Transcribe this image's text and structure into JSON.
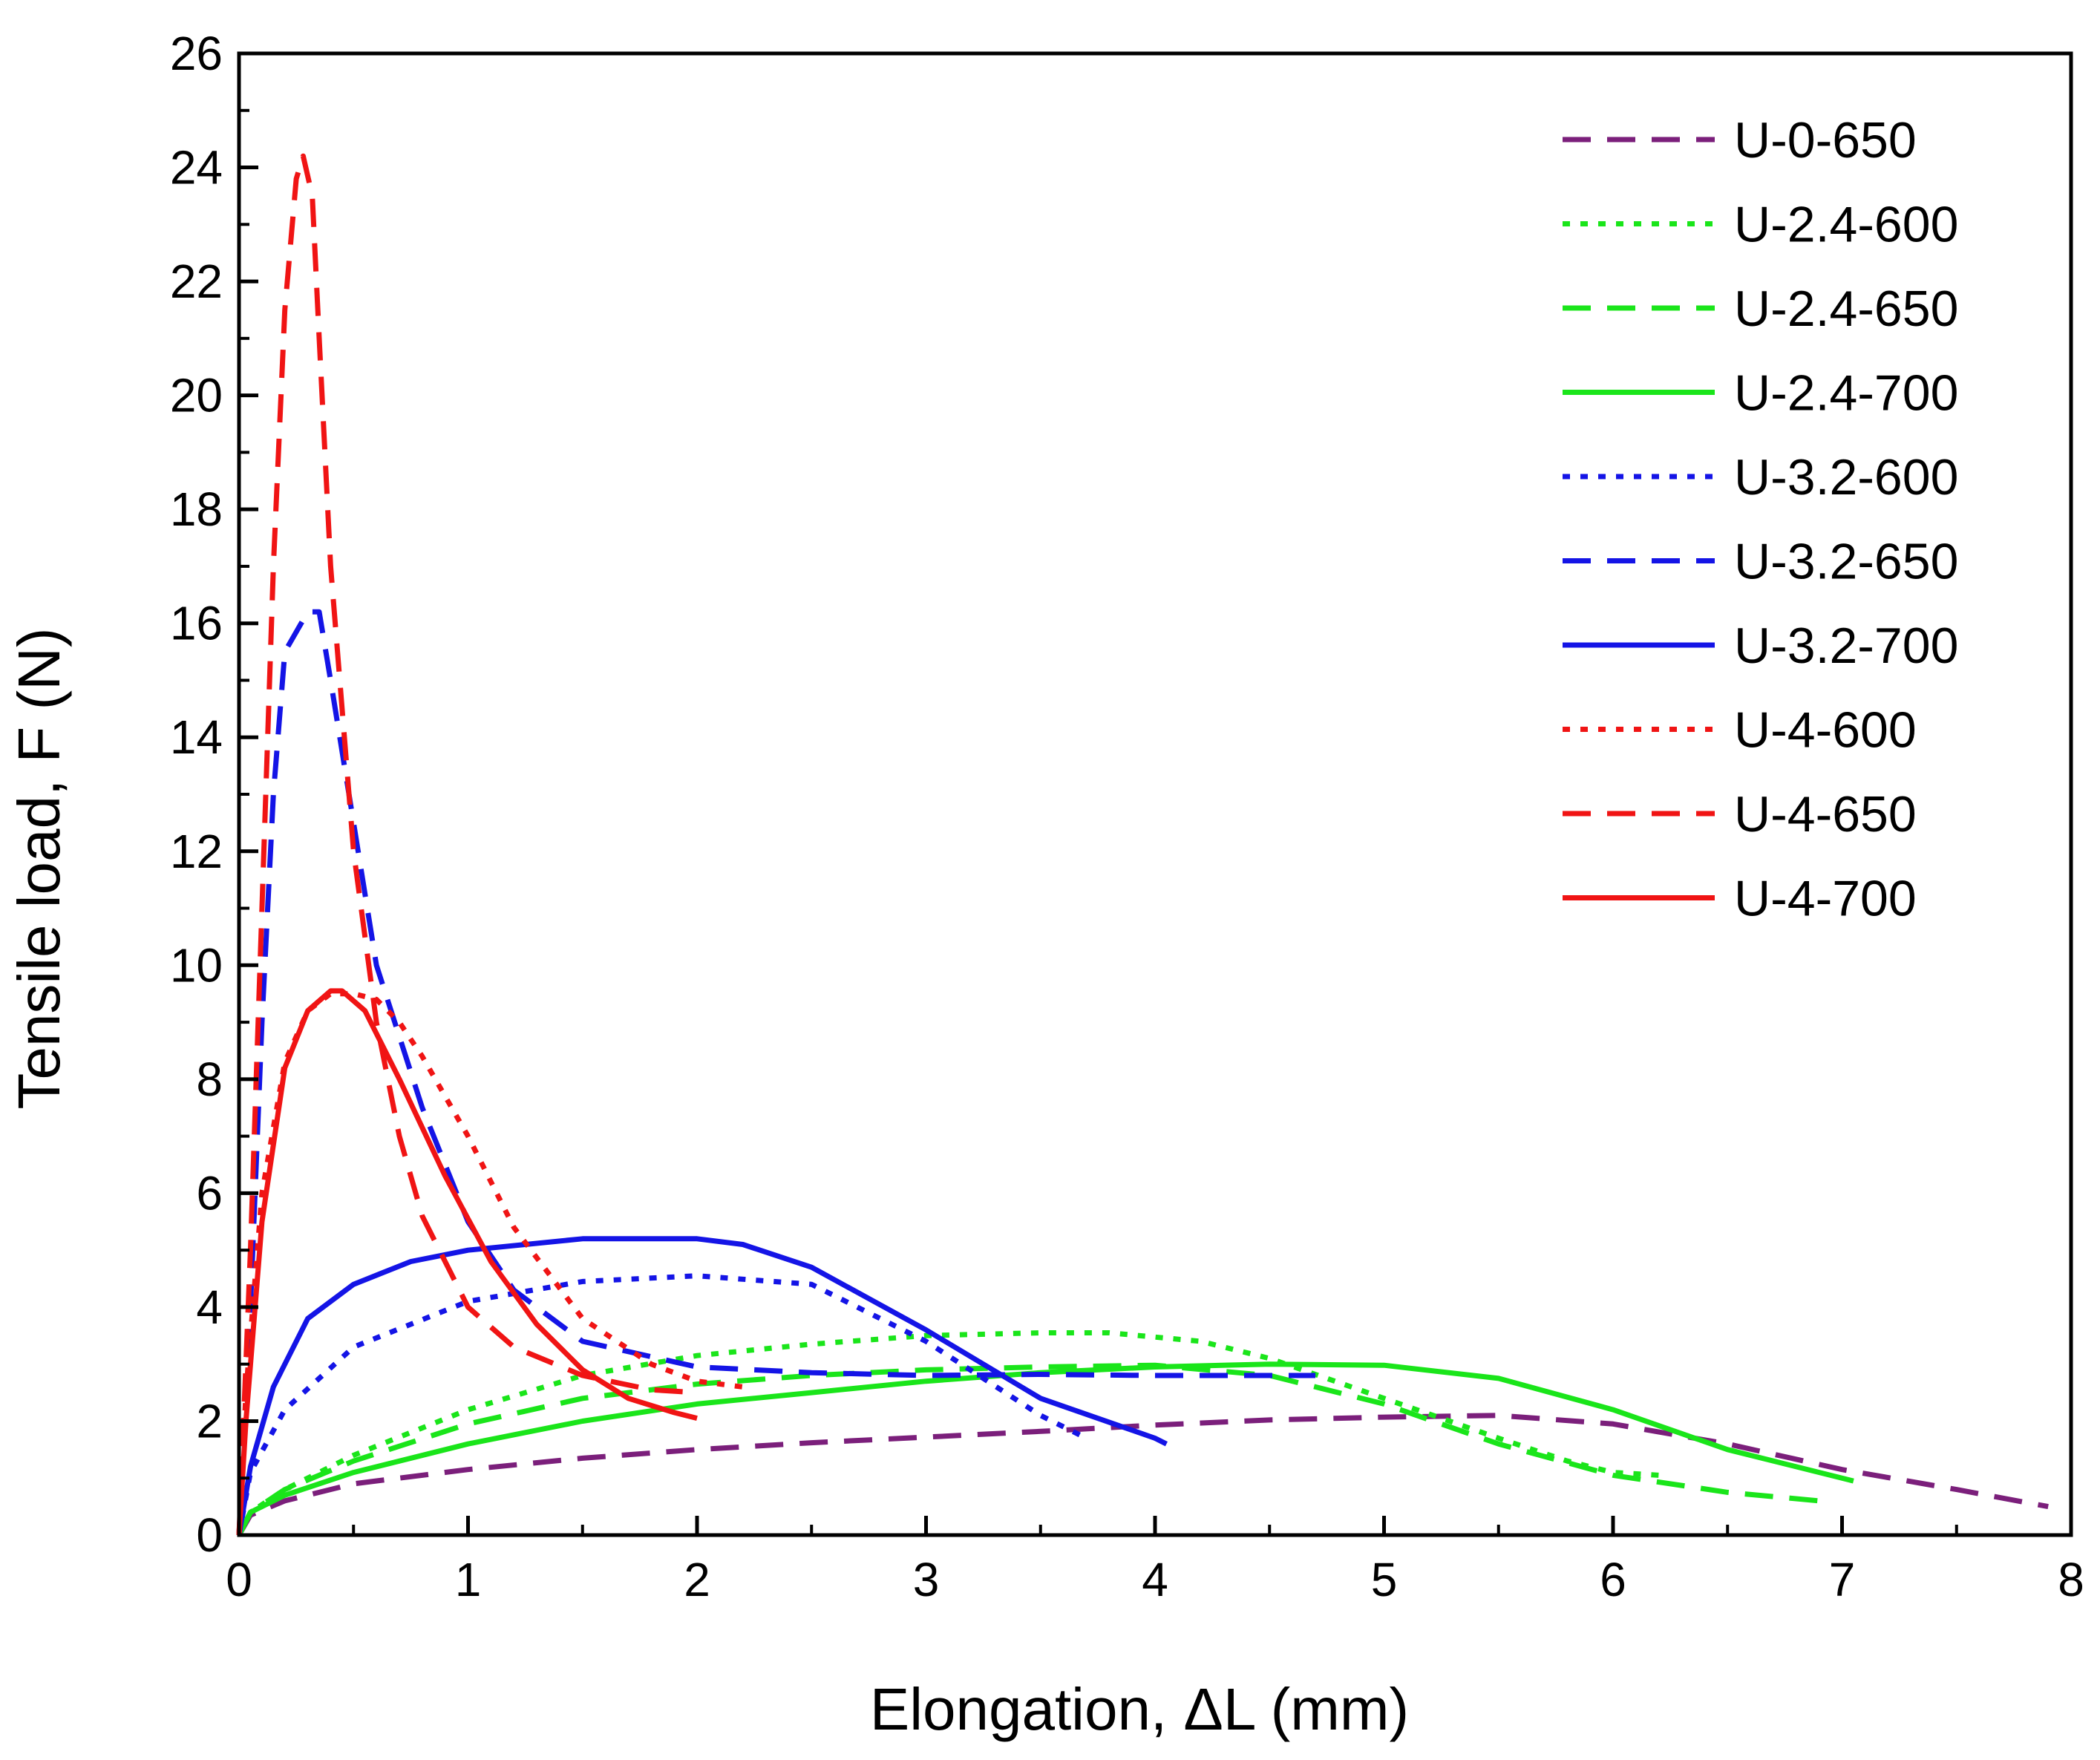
{
  "chart_data": {
    "type": "line",
    "title": "",
    "xlabel": "Elongation, ΔL (mm)",
    "ylabel": "Tensile load, F (N)",
    "xlim": [
      0,
      8
    ],
    "ylim": [
      0,
      26
    ],
    "xticks": [
      "0",
      "1",
      "2",
      "3",
      "4",
      "5",
      "6",
      "7",
      "8"
    ],
    "yticks": [
      "0",
      "2",
      "4",
      "6",
      "8",
      "10",
      "12",
      "14",
      "16",
      "18",
      "20",
      "22",
      "24",
      "26"
    ],
    "legend_position": "top-right",
    "grid": false,
    "series": [
      {
        "name": "U-0-650",
        "color": "#7B1F7B",
        "style": "dashed",
        "x": [
          0,
          0.05,
          0.2,
          0.5,
          1.0,
          1.5,
          2.0,
          2.5,
          3.0,
          3.5,
          4.0,
          4.5,
          5.0,
          5.5,
          6.0,
          6.5,
          7.0,
          7.5,
          7.9
        ],
        "y": [
          0,
          0.35,
          0.6,
          0.9,
          1.15,
          1.35,
          1.5,
          1.62,
          1.72,
          1.82,
          1.93,
          2.02,
          2.07,
          2.1,
          1.95,
          1.6,
          1.15,
          0.8,
          0.5
        ]
      },
      {
        "name": "U-2.4-600",
        "color": "#1AE51A",
        "style": "dotted",
        "x": [
          0,
          0.05,
          0.2,
          0.5,
          1.0,
          1.5,
          2.0,
          2.5,
          3.0,
          3.5,
          3.8,
          4.2,
          4.5,
          5.0,
          5.5,
          5.8,
          6.0,
          6.2
        ],
        "y": [
          0,
          0.4,
          0.8,
          1.4,
          2.2,
          2.8,
          3.15,
          3.35,
          3.5,
          3.55,
          3.55,
          3.4,
          3.1,
          2.4,
          1.7,
          1.3,
          1.1,
          1.05
        ]
      },
      {
        "name": "U-2.4-650",
        "color": "#1AE51A",
        "style": "dashed",
        "x": [
          0,
          0.05,
          0.2,
          0.5,
          1.0,
          1.5,
          2.0,
          2.5,
          3.0,
          3.5,
          4.0,
          4.5,
          5.0,
          5.5,
          6.0,
          6.5,
          6.9
        ],
        "y": [
          0,
          0.4,
          0.8,
          1.3,
          1.95,
          2.4,
          2.65,
          2.8,
          2.9,
          2.95,
          2.98,
          2.8,
          2.3,
          1.6,
          1.05,
          0.75,
          0.6
        ]
      },
      {
        "name": "U-2.4-700",
        "color": "#1AE51A",
        "style": "solid",
        "x": [
          0,
          0.05,
          0.2,
          0.5,
          1.0,
          1.5,
          2.0,
          2.5,
          3.0,
          3.5,
          4.0,
          4.5,
          5.0,
          5.5,
          6.0,
          6.5,
          7.05
        ],
        "y": [
          0,
          0.4,
          0.7,
          1.1,
          1.6,
          2.0,
          2.3,
          2.5,
          2.7,
          2.85,
          2.95,
          3.0,
          2.98,
          2.75,
          2.2,
          1.5,
          0.95
        ]
      },
      {
        "name": "U-3.2-600",
        "color": "#1414E6",
        "style": "dotted",
        "x": [
          0,
          0.05,
          0.2,
          0.5,
          1.0,
          1.5,
          2.0,
          2.5,
          3.0,
          3.5,
          3.7
        ],
        "y": [
          0,
          1.1,
          2.2,
          3.3,
          4.1,
          4.45,
          4.55,
          4.4,
          3.4,
          2.1,
          1.7
        ]
      },
      {
        "name": "U-3.2-650",
        "color": "#1414E6",
        "style": "dashed",
        "x": [
          0,
          0.05,
          0.1,
          0.15,
          0.2,
          0.3,
          0.35,
          0.4,
          0.5,
          0.6,
          0.8,
          1.0,
          1.2,
          1.5,
          2.0,
          2.5,
          3.0,
          3.5,
          4.0,
          4.5,
          4.7
        ],
        "y": [
          0,
          4.0,
          9.0,
          13.0,
          15.5,
          16.2,
          16.2,
          15.0,
          12.5,
          10.0,
          7.5,
          5.5,
          4.3,
          3.4,
          2.95,
          2.85,
          2.8,
          2.82,
          2.8,
          2.8,
          2.8
        ]
      },
      {
        "name": "U-3.2-700",
        "color": "#1414E6",
        "style": "solid",
        "x": [
          0,
          0.05,
          0.15,
          0.3,
          0.5,
          0.75,
          1.0,
          1.5,
          2.0,
          2.2,
          2.5,
          3.0,
          3.5,
          4.0,
          4.05
        ],
        "y": [
          0,
          1.2,
          2.6,
          3.8,
          4.4,
          4.8,
          5.0,
          5.2,
          5.2,
          5.1,
          4.7,
          3.6,
          2.4,
          1.7,
          1.6
        ]
      },
      {
        "name": "U-4-600",
        "color": "#F01414",
        "style": "dotted",
        "x": [
          0,
          0.03,
          0.1,
          0.2,
          0.3,
          0.4,
          0.5,
          0.6,
          0.7,
          0.8,
          1.0,
          1.2,
          1.5,
          1.8,
          2.0,
          2.2
        ],
        "y": [
          0,
          2.5,
          6.0,
          8.3,
          9.2,
          9.5,
          9.5,
          9.4,
          9.0,
          8.4,
          7.0,
          5.4,
          3.8,
          3.0,
          2.7,
          2.6
        ]
      },
      {
        "name": "U-4-650",
        "color": "#F01414",
        "style": "dashed",
        "x": [
          0,
          0.05,
          0.1,
          0.15,
          0.2,
          0.25,
          0.28,
          0.32,
          0.35,
          0.4,
          0.5,
          0.6,
          0.7,
          0.8,
          1.0,
          1.2,
          1.5,
          1.8,
          2.0
        ],
        "y": [
          0,
          5.0,
          11.0,
          17.0,
          21.5,
          23.8,
          24.2,
          23.5,
          21.0,
          17.0,
          12.0,
          9.0,
          7.0,
          5.6,
          4.0,
          3.3,
          2.8,
          2.55,
          2.5
        ]
      },
      {
        "name": "U-4-700",
        "color": "#F01414",
        "style": "solid",
        "x": [
          0,
          0.03,
          0.1,
          0.2,
          0.3,
          0.4,
          0.45,
          0.55,
          0.7,
          0.9,
          1.1,
          1.3,
          1.5,
          1.7,
          1.9,
          2.0
        ],
        "y": [
          0,
          2.0,
          5.5,
          8.2,
          9.2,
          9.55,
          9.55,
          9.2,
          8.0,
          6.3,
          4.8,
          3.7,
          2.9,
          2.4,
          2.15,
          2.05
        ]
      }
    ]
  }
}
